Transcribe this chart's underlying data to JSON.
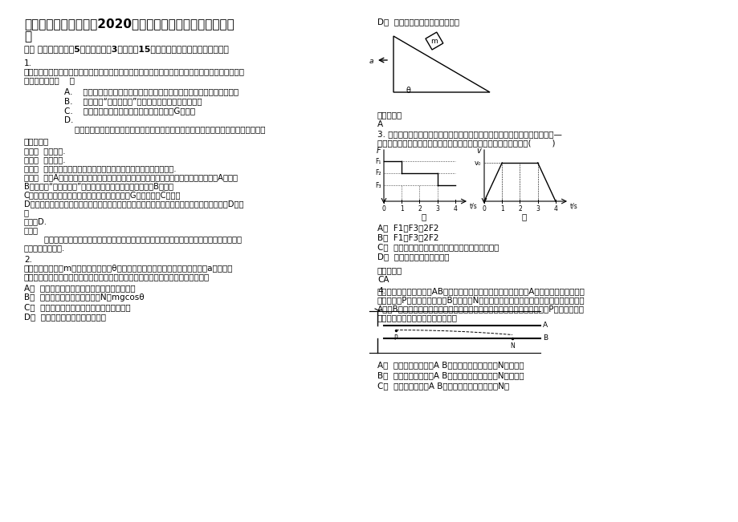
{
  "page_bg": "#ffffff",
  "title_line1": "四川省泸州市城关中学2020年高三物理上学期期末试卷含解",
  "title_line2": "析",
  "section_header": "一、 选择题：本题共5小题，每小题3分，共计15分，每小题只有一个选项符合题意",
  "q1_intro": "（单选）在物理学的发展过程中，许多物理学家的科学发现推动了人类历史的进步，下列表述符合物",
  "q1_intro2": "理学史实的是（    ）",
  "q1_A": "A.    开普勒认为只有在一定的条件下，弹簧的弹力才与弹簧的形变量成正比",
  "q1_B": "B.    伽利略用“月－地检验”证实了万有引力定律的正确性",
  "q1_C": "C.    库仑利用实验较为准确地测出了引力常量G的数值",
  "q1_D": "D.",
  "q1_D2": "    牛顿认为在足够高的高山上以足够大的水平速度抛出一物体，物体就不会再落在地球上",
  "ans_label": "参考答案：",
  "ans1_lines": [
    "考点：  物理学史.",
    "专题：  常规题型.",
    "分析：  根据物理学史和常识解答，记住著名物理学家的主要贡献即可.",
    "解答：  解：A、胡克认为只有在一定的条件下，弹簧的弹力才与弹簧的形变量成正比，故A错误；",
    "B、牛顿用“月－地检验”证实了万有引力定律的正确性，故B错误；",
    "C、卡文迪许利用实验较为准确地测出了引力常量G的数值，故C错误；",
    "D、牛顿认为在足够高的高山上以足够大的水平速度抛出一物体，物体就不会再落在地球上，故D正确",
    "；",
    "故选：D.",
    "点评：",
    "        本题考查物理学史，是常识性问题，对于物理学上重大发现、发明、著名理论要加强记忆，这",
    "也是考试内容之一."
  ],
  "q2_line1": "如图所示，质量为m的物体置于倾角为θ的斜面上，在外力作用下，斜面以加速度a沿水平方",
  "q2_line2": "向向左做匀加速直线运动，运动中物体与斜面保持相对静止，则下列说法中正确的是",
  "q2_A": "A．  在运动过程中物体所受支持力对物体做正功",
  "q2_B": "B．  物体受到斜面施加的支持力N＝mgcosθ",
  "q2_C": "C．  在运动过程中物体所受重力对物体做负功",
  "q2_D": "D．  物体所受的摩擦力一定做负功",
  "r_D_label": "D．  物体所受的摩擦力一定做负功",
  "r_ans2_label": "参考答案：",
  "r_ans2_val": "A",
  "q3_line1": "3. 静止在水平面上的物块在如图甲所示的水平拉力作用下做直线运动，其速度—",
  "q3_line2": "时间图象如图乙所示，若物块与水平面间的动摩擦因数处处相同，则(        )",
  "q3_A": "A．  F1＋F3＝2F2",
  "q3_B": "B．  F1＋F3＞2F2",
  "q3_C": "C．  全过程中拉力做的功等于物块克服摩擦力做的功",
  "q3_D": "D．  全过程拉力做的功等于零",
  "r_ans3_label": "参考答案：",
  "r_ans3_val": "CA",
  "q4_label": "4.",
  "q4_lines": [
    "如图所示，平行板电容器AB两极板水平放置，与电源相连接，已知A和电源正极相连，一带",
    "正电小球由P点水平射入，打在B极板上的N点，小球的重力不能忽略，现通过上下平行移动",
    "A板，B板不动，来改变两极板间距（未碰到小球）后，现仍使带正电小球由P点以相同的水",
    "平初速度射入，则下列说法正确的是"
  ],
  "q4_A": "A．  若电键仍闭合，当A B间距减小时，小球打在N点的左侧",
  "q4_B": "B．  若电键仍闭合，当A B间距增大时，小球打在N点的左侧",
  "q4_C": "C．  若电键断开，当A B间距减小时，小球仍打在N点"
}
